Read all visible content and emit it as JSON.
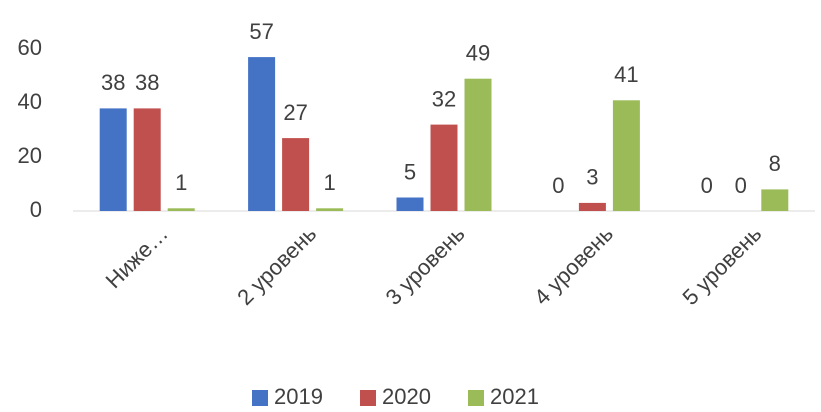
{
  "chart_data": {
    "type": "bar",
    "categories": [
      "Ниже…",
      "2 уровень",
      "3 уровень",
      "4 уровень",
      "5 уровень"
    ],
    "series": [
      {
        "name": "2019",
        "color": "#4472c4",
        "values": [
          38,
          57,
          5,
          0,
          0
        ]
      },
      {
        "name": "2020",
        "color": "#c0504d",
        "values": [
          38,
          27,
          32,
          3,
          0
        ]
      },
      {
        "name": "2021",
        "color": "#9bbb59",
        "values": [
          1,
          1,
          49,
          41,
          8
        ]
      }
    ],
    "ylim": [
      0,
      60
    ],
    "yticks": [
      0,
      20,
      40,
      60
    ],
    "grid": false,
    "legend": "bottom"
  }
}
